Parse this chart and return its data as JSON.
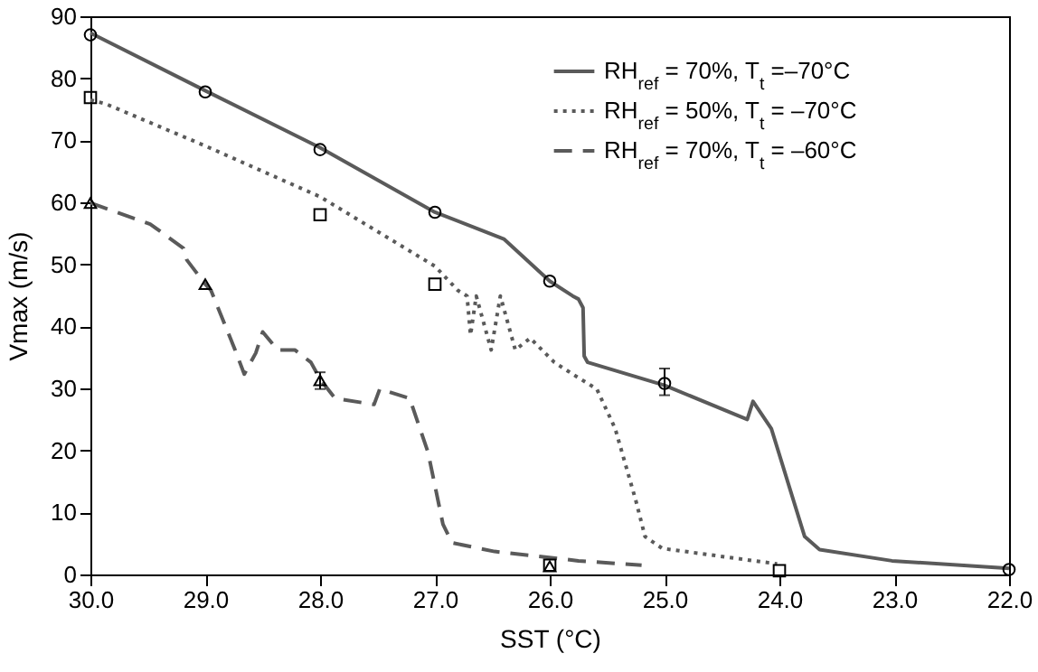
{
  "chart_data": {
    "type": "line",
    "xlabel": "SST (°C)",
    "ylabel": "Vmax (m/s)",
    "xlim": [
      30,
      22
    ],
    "xticks": [
      {
        "value": 30,
        "label": "30.0"
      },
      {
        "value": 29,
        "label": "29.0"
      },
      {
        "value": 28,
        "label": "28.0"
      },
      {
        "value": 27,
        "label": "27.0"
      },
      {
        "value": 26,
        "label": "26.0"
      },
      {
        "value": 25,
        "label": "25.0"
      },
      {
        "value": 24,
        "label": "24.0"
      },
      {
        "value": 23,
        "label": "23.0"
      },
      {
        "value": 22,
        "label": "22.0"
      }
    ],
    "ylim": [
      0,
      90
    ],
    "yticks": [
      0,
      10,
      20,
      30,
      40,
      50,
      60,
      70,
      80,
      90
    ],
    "grid": false,
    "legend": "top right",
    "series": [
      {
        "name": "RH$_{ref}$ = 70%, T$_{t}$ =–70°C",
        "color": "#5a5a5a",
        "line_style": "solid",
        "x": [
          30,
          29,
          28,
          27,
          26.4,
          26,
          25.8,
          25.75,
          25.71,
          25.7,
          25.67,
          25,
          24.28,
          24.23,
          24.07,
          23.91,
          23.78,
          23.65,
          23.02,
          22
        ],
        "values": [
          87.3,
          78,
          68.8,
          58.4,
          54.1,
          47.3,
          44.9,
          44.4,
          43,
          35.2,
          34.2,
          30.5,
          25,
          27.9,
          23.5,
          13.9,
          6.1,
          4.0,
          2.2,
          1.0
        ]
      },
      {
        "name": "RH$_{ref}$ = 50%, T$_{t}$ = –70°C",
        "color": "#5a5a5a",
        "line_style": "dotted",
        "x": [
          30,
          29.87,
          29,
          28,
          27,
          26.8,
          26.72,
          26.69,
          26.64,
          26.51,
          26.43,
          26.3,
          26.17,
          25.96,
          25.8,
          25.59,
          25.43,
          25.25,
          25.17,
          25.02,
          24.02
        ],
        "values": [
          76.5,
          75.9,
          69.1,
          60.9,
          49.7,
          45.8,
          44.9,
          38.6,
          44.9,
          36.2,
          44.9,
          36.2,
          38.1,
          34.2,
          32.3,
          29.9,
          23.5,
          11.9,
          6.1,
          4.2,
          1.7
        ]
      },
      {
        "name": "RH$_{ref}$ = 70%, T$_{t}$ = –60°C",
        "color": "#5a5a5a",
        "line_style": "dashed",
        "x": [
          30,
          29.48,
          29.19,
          29.16,
          29,
          28.95,
          28.74,
          28.66,
          28.56,
          28.5,
          28.37,
          28.22,
          28.08,
          28,
          27.87,
          27.53,
          27.48,
          27.22,
          27.06,
          26.93,
          26.85,
          26.48,
          25.75,
          25.2
        ],
        "values": [
          59.9,
          56.5,
          52.6,
          50.7,
          46.8,
          45.8,
          36.2,
          32.3,
          35.7,
          39.1,
          36.2,
          36.2,
          34.2,
          31.5,
          28.4,
          27.4,
          29.9,
          28.4,
          19.7,
          8.1,
          5.1,
          3.7,
          2.2,
          1.5
        ]
      },
      {
        "type": "scatter",
        "color": "#000000",
        "marker": "circle",
        "x": [
          30,
          29,
          28,
          27,
          26,
          25,
          22
        ],
        "values": [
          87,
          77.8,
          68.5,
          58.4,
          47.3,
          30.8,
          0.8
        ],
        "errors": [
          null,
          null,
          null,
          null,
          null,
          [
            28.9,
            33.2
          ],
          null
        ]
      },
      {
        "type": "scatter",
        "color": "#000000",
        "marker": "square",
        "x": [
          30,
          28,
          27,
          26,
          24
        ],
        "values": [
          76.9,
          58,
          46.8,
          1.5,
          0.6
        ]
      },
      {
        "type": "scatter",
        "color": "#000000",
        "marker": "triangle",
        "x": [
          30,
          29,
          28,
          26
        ],
        "values": [
          59.9,
          46.8,
          31.3,
          1.3
        ],
        "errors": [
          null,
          null,
          [
            29.9,
            32.6
          ],
          null
        ]
      }
    ]
  }
}
